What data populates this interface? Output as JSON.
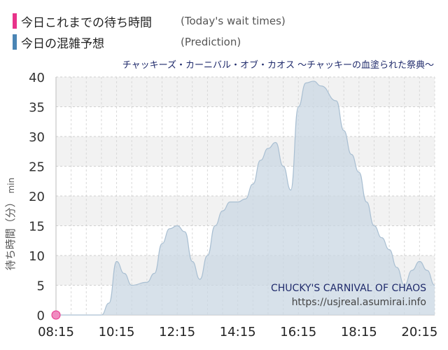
{
  "legend": {
    "today_label": "今日これまでの待ち時間",
    "today_en": "(Today's wait times)",
    "today_color": "#e8338a",
    "prediction_label": "今日の混雑予想",
    "prediction_en": "(Prediction)",
    "prediction_color": "#4a85b5"
  },
  "attraction_title": "チャッキーズ・カーニバル・オブ・カオス 〜チャッキーの血塗られた祭典〜",
  "watermark": {
    "name": "CHUCKY'S CARNIVAL OF CHAOS",
    "url": "https://usjreal.asumirai.info"
  },
  "ylabel": {
    "text": "待ち時間（分）",
    "unit": "min"
  },
  "chart_data": {
    "type": "area",
    "ylim": [
      0,
      40
    ],
    "yticks": [
      0,
      5,
      10,
      15,
      20,
      25,
      30,
      35,
      40
    ],
    "xlim": [
      "08:15",
      "20:45"
    ],
    "xticks": [
      "08:15",
      "10:15",
      "12:15",
      "14:15",
      "16:15",
      "18:15",
      "20:15"
    ],
    "grid": true,
    "series": [
      {
        "kind": "prediction",
        "points": [
          [
            "08:15",
            0
          ],
          [
            "08:45",
            0
          ],
          [
            "09:15",
            0
          ],
          [
            "09:45",
            0
          ],
          [
            "10:00",
            2
          ],
          [
            "10:15",
            9
          ],
          [
            "10:30",
            7
          ],
          [
            "10:45",
            5
          ],
          [
            "11:15",
            5.5
          ],
          [
            "11:30",
            7
          ],
          [
            "11:45",
            12
          ],
          [
            "12:00",
            14.5
          ],
          [
            "12:15",
            15
          ],
          [
            "12:30",
            14
          ],
          [
            "12:45",
            9
          ],
          [
            "13:00",
            6
          ],
          [
            "13:15",
            10
          ],
          [
            "13:30",
            15
          ],
          [
            "13:45",
            17.5
          ],
          [
            "14:00",
            19
          ],
          [
            "14:15",
            19
          ],
          [
            "14:30",
            19.5
          ],
          [
            "14:45",
            22
          ],
          [
            "15:00",
            26
          ],
          [
            "15:15",
            28
          ],
          [
            "15:30",
            29
          ],
          [
            "15:45",
            25
          ],
          [
            "16:00",
            21
          ],
          [
            "16:15",
            35
          ],
          [
            "16:30",
            39
          ],
          [
            "16:45",
            39.3
          ],
          [
            "17:00",
            38.5
          ],
          [
            "17:30",
            36
          ],
          [
            "17:45",
            31
          ],
          [
            "18:00",
            27
          ],
          [
            "18:15",
            24
          ],
          [
            "18:30",
            19
          ],
          [
            "18:45",
            15
          ],
          [
            "19:00",
            13
          ],
          [
            "19:15",
            11
          ],
          [
            "19:30",
            8
          ],
          [
            "19:45",
            5
          ],
          [
            "20:00",
            7.5
          ],
          [
            "20:15",
            9
          ],
          [
            "20:30",
            7.5
          ],
          [
            "20:45",
            5
          ]
        ]
      },
      {
        "kind": "today",
        "points": [
          [
            "08:15",
            0
          ]
        ]
      }
    ]
  }
}
